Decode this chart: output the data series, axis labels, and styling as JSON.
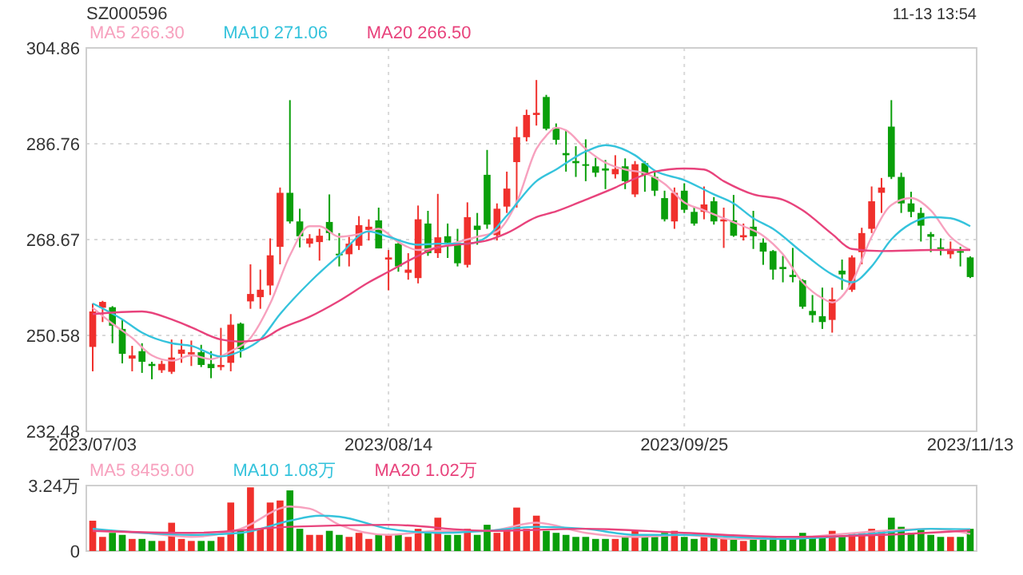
{
  "chart_data": [
    {
      "type": "candlestick",
      "title": "SZ000596",
      "annotations": [
        "11-13 13:54"
      ],
      "categories": [
        "2023/07/03",
        null,
        null,
        null,
        null,
        null,
        null,
        null,
        null,
        null,
        null,
        null,
        null,
        null,
        null,
        null,
        null,
        null,
        null,
        null,
        null,
        null,
        null,
        null,
        null,
        null,
        null,
        null,
        null,
        null,
        "2023/08/14",
        null,
        null,
        null,
        null,
        null,
        null,
        null,
        null,
        null,
        null,
        null,
        null,
        null,
        null,
        null,
        null,
        null,
        null,
        null,
        null,
        null,
        null,
        null,
        null,
        null,
        null,
        null,
        null,
        null,
        "2023/09/25",
        null,
        null,
        null,
        null,
        null,
        null,
        null,
        null,
        null,
        null,
        null,
        null,
        null,
        null,
        null,
        null,
        null,
        null,
        null,
        null,
        null,
        null,
        null,
        null,
        null,
        null,
        null,
        null,
        "2023/11/13"
      ],
      "ohlc": [
        [
          248.4,
          256.6,
          243.8,
          255.1
        ],
        [
          255.8,
          257.1,
          253.1,
          256.9
        ],
        [
          255.9,
          256.1,
          249.1,
          252.4
        ],
        [
          251.8,
          253.6,
          245.3,
          247.1
        ],
        [
          246.2,
          248.6,
          243.8,
          246.8
        ],
        [
          247.6,
          249.1,
          243.5,
          245.6
        ],
        [
          245.2,
          245.6,
          242.3,
          244.8
        ],
        [
          244.0,
          245.8,
          243.5,
          245.2
        ],
        [
          243.7,
          249.8,
          243.3,
          246.4
        ],
        [
          247.1,
          249.8,
          245.4,
          247.9
        ],
        [
          247.0,
          249.6,
          244.8,
          247.4
        ],
        [
          247.4,
          248.8,
          244.6,
          245.0
        ],
        [
          245.2,
          247.6,
          242.5,
          244.4
        ],
        [
          244.6,
          252.0,
          244.0,
          245.0
        ],
        [
          245.4,
          254.6,
          243.8,
          252.6
        ],
        [
          252.8,
          253.0,
          246.4,
          248.0
        ],
        [
          257.0,
          264.0,
          255.6,
          258.4
        ],
        [
          257.8,
          263.0,
          255.6,
          259.2
        ],
        [
          260.0,
          268.9,
          258.2,
          265.7
        ],
        [
          267.3,
          278.5,
          264.0,
          277.5
        ],
        [
          277.5,
          295.0,
          271.7,
          272.1
        ],
        [
          272.1,
          274.5,
          267.2,
          269.3
        ],
        [
          267.9,
          269.7,
          267.2,
          268.9
        ],
        [
          268.2,
          270.7,
          264.7,
          269.4
        ],
        [
          272.0,
          277.2,
          268.5,
          269.9
        ],
        [
          266.0,
          269.9,
          263.6,
          265.8
        ],
        [
          265.9,
          269.2,
          263.6,
          267.9
        ],
        [
          267.5,
          273.1,
          266.7,
          271.4
        ],
        [
          270.5,
          272.5,
          268.5,
          271.1
        ],
        [
          272.3,
          274.7,
          267.0,
          267.0
        ],
        [
          264.9,
          266.7,
          259.1,
          265.3
        ],
        [
          267.9,
          268.5,
          262.6,
          263.6
        ],
        [
          262.4,
          266.1,
          261.1,
          263.0
        ],
        [
          261.4,
          275.1,
          260.4,
          272.5
        ],
        [
          271.7,
          274.1,
          265.6,
          266.1
        ],
        [
          266.1,
          277.3,
          265.2,
          269.1
        ],
        [
          269.3,
          271.7,
          265.2,
          268.1
        ],
        [
          268.1,
          270.7,
          263.6,
          264.2
        ],
        [
          263.9,
          275.7,
          263.4,
          272.9
        ],
        [
          271.3,
          273.7,
          267.7,
          270.5
        ],
        [
          280.9,
          285.6,
          270.7,
          271.5
        ],
        [
          269.5,
          275.5,
          268.5,
          274.5
        ],
        [
          274.9,
          281.5,
          273.7,
          278.3
        ],
        [
          283.3,
          290.0,
          274.7,
          288.0
        ],
        [
          288.0,
          293.2,
          287.2,
          292.2
        ],
        [
          292.2,
          298.8,
          290.2,
          292.6
        ],
        [
          295.6,
          296.0,
          289.3,
          289.6
        ],
        [
          289.8,
          290.6,
          286.6,
          287.5
        ],
        [
          285.0,
          289.3,
          281.5,
          284.6
        ],
        [
          283.5,
          286.3,
          280.5,
          283.1
        ],
        [
          282.9,
          287.6,
          279.7,
          282.6
        ],
        [
          282.5,
          284.1,
          280.5,
          281.3
        ],
        [
          282.1,
          283.7,
          278.2,
          281.7
        ],
        [
          281.0,
          284.6,
          280.2,
          282.0
        ],
        [
          282.5,
          284.0,
          278.2,
          279.7
        ],
        [
          277.2,
          283.5,
          276.7,
          282.9
        ],
        [
          283.1,
          283.5,
          277.7,
          280.9
        ],
        [
          280.5,
          281.5,
          276.9,
          277.9
        ],
        [
          276.5,
          277.9,
          272.1,
          272.5
        ],
        [
          272.1,
          278.5,
          270.7,
          277.5
        ],
        [
          277.9,
          279.3,
          273.7,
          274.3
        ],
        [
          273.9,
          274.9,
          271.3,
          271.7
        ],
        [
          273.9,
          278.7,
          272.5,
          275.3
        ],
        [
          275.9,
          276.7,
          271.5,
          272.1
        ],
        [
          272.1,
          274.7,
          267.1,
          272.5
        ],
        [
          272.3,
          277.1,
          269.2,
          269.4
        ],
        [
          269.1,
          271.7,
          268.5,
          269.5
        ],
        [
          271.1,
          274.1,
          266.9,
          269.3
        ],
        [
          268.1,
          268.9,
          263.9,
          266.4
        ],
        [
          266.5,
          266.7,
          261.1,
          263.0
        ],
        [
          263.5,
          265.6,
          260.6,
          263.1
        ],
        [
          262.0,
          267.1,
          260.6,
          261.6
        ],
        [
          261.0,
          261.2,
          255.6,
          256.0
        ],
        [
          255.2,
          258.2,
          253.0,
          254.4
        ],
        [
          254.2,
          259.6,
          251.8,
          253.1
        ],
        [
          253.5,
          259.6,
          251.1,
          257.4
        ],
        [
          262.8,
          264.9,
          259.2,
          262.1
        ],
        [
          259.2,
          265.7,
          258.8,
          265.3
        ],
        [
          266.3,
          270.9,
          264.0,
          269.9
        ],
        [
          270.7,
          278.7,
          269.9,
          275.9
        ],
        [
          277.5,
          280.3,
          273.7,
          278.5
        ],
        [
          290.0,
          295.0,
          280.1,
          280.5
        ],
        [
          280.5,
          281.3,
          273.7,
          275.5
        ],
        [
          275.5,
          277.7,
          272.9,
          273.9
        ],
        [
          273.7,
          274.7,
          268.3,
          271.3
        ],
        [
          269.7,
          270.1,
          266.3,
          269.2
        ],
        [
          267.2,
          268.9,
          265.7,
          266.9
        ],
        [
          265.9,
          268.3,
          265.1,
          266.9
        ],
        [
          266.5,
          267.3,
          263.6,
          266.2
        ],
        [
          265.3,
          265.5,
          261.4,
          261.6
        ]
      ],
      "colors": [
        "#f0302c",
        "#f0302c",
        "#0a9f0a",
        "#0a9f0a",
        "#f0302c",
        "#0a9f0a",
        "#0a9f0a",
        "#f0302c",
        "#f0302c",
        "#f0302c",
        "#f0302c",
        "#0a9f0a",
        "#0a9f0a",
        "#f0302c",
        "#f0302c",
        "#0a9f0a",
        "#f0302c",
        "#f0302c",
        "#f0302c",
        "#f0302c",
        "#0a9f0a",
        "#0a9f0a",
        "#f0302c",
        "#f0302c",
        "#0a9f0a",
        "#0a9f0a",
        "#f0302c",
        "#f0302c",
        "#f0302c",
        "#0a9f0a",
        "#f0302c",
        "#0a9f0a",
        "#f0302c",
        "#f0302c",
        "#0a9f0a",
        "#f0302c",
        "#0a9f0a",
        "#0a9f0a",
        "#f0302c",
        "#0a9f0a",
        "#0a9f0a",
        "#f0302c",
        "#f0302c",
        "#f0302c",
        "#f0302c",
        "#f0302c",
        "#0a9f0a",
        "#0a9f0a",
        "#0a9f0a",
        "#0a9f0a",
        "#0a9f0a",
        "#0a9f0a",
        "#0a9f0a",
        "#f0302c",
        "#0a9f0a",
        "#f0302c",
        "#0a9f0a",
        "#0a9f0a",
        "#0a9f0a",
        "#f0302c",
        "#0a9f0a",
        "#0a9f0a",
        "#f0302c",
        "#0a9f0a",
        "#f0302c",
        "#0a9f0a",
        "#f0302c",
        "#0a9f0a",
        "#0a9f0a",
        "#0a9f0a",
        "#0a9f0a",
        "#0a9f0a",
        "#0a9f0a",
        "#0a9f0a",
        "#0a9f0a",
        "#f0302c",
        "#0a9f0a",
        "#f0302c",
        "#f0302c",
        "#f0302c",
        "#f0302c",
        "#0a9f0a",
        "#0a9f0a",
        "#0a9f0a",
        "#0a9f0a",
        "#0a9f0a",
        "#0a9f0a",
        "#f0302c",
        "#0a9f0a",
        "#0a9f0a"
      ],
      "series": [
        {
          "type": "line",
          "name": "MA5 266.30",
          "color": "#f7a1be",
          "values": [
            255.8,
            null,
            252.8,
            null,
            250.1,
            null,
            246.8,
            null,
            245.8,
            null,
            246.8,
            null,
            246.1,
            null,
            247.6,
            null,
            250.1,
            null,
            256.6,
            null,
            265.7,
            null,
            271.2,
            271.2,
            null,
            269.2,
            null,
            269.7,
            null,
            270.7,
            null,
            268.2,
            null,
            266.7,
            null,
            267.2,
            null,
            268.2,
            null,
            269.2,
            null,
            270.2,
            null,
            275.7,
            null,
            285.8,
            288.3,
            289.8,
            289.3,
            null,
            285.8,
            null,
            283.2,
            null,
            281.9,
            null,
            281.2,
            null,
            279.2,
            null,
            275.7,
            null,
            274.2,
            null,
            272.7,
            null,
            271.2,
            null,
            269.4,
            null,
            265.9,
            null,
            260.6,
            null,
            257.6,
            256.8,
            null,
            260.6,
            null,
            269.2,
            null,
            275.2,
            null,
            276.5,
            null,
            274.2,
            null,
            269.2,
            null,
            266.7
          ]
        },
        {
          "type": "line",
          "name": "MA10 271.06",
          "color": "#35c3dc",
          "values": [
            256.6,
            null,
            null,
            253.6,
            null,
            251.1,
            null,
            null,
            249.1,
            null,
            248.6,
            null,
            null,
            246.6,
            null,
            247.6,
            null,
            249.8,
            null,
            254.6,
            null,
            null,
            260.6,
            null,
            null,
            265.7,
            null,
            null,
            270.2,
            null,
            269.2,
            null,
            null,
            267.7,
            null,
            267.9,
            null,
            null,
            267.9,
            null,
            269.2,
            null,
            273.2,
            null,
            null,
            279.7,
            null,
            281.9,
            null,
            null,
            285.3,
            null,
            286.5,
            null,
            null,
            284.6,
            null,
            281.7,
            null,
            null,
            279.9,
            null,
            null,
            277.2,
            null,
            275.5,
            null,
            272.7,
            null,
            270.7,
            null,
            null,
            266.2,
            null,
            null,
            262.1,
            null,
            260.6,
            null,
            263.6,
            null,
            268.7,
            null,
            271.7,
            null,
            272.9,
            null,
            272.7,
            null,
            271.2
          ]
        },
        {
          "type": "line",
          "name": "MA20 266.50",
          "color": "#e8437c",
          "values": [
            254.6,
            null,
            null,
            null,
            null,
            255.1,
            null,
            null,
            253.6,
            null,
            252.1,
            null,
            null,
            249.8,
            null,
            249.4,
            null,
            249.8,
            null,
            251.8,
            null,
            null,
            254.1,
            null,
            null,
            257.1,
            null,
            null,
            260.6,
            null,
            262.6,
            null,
            null,
            265.6,
            null,
            267.2,
            null,
            null,
            267.9,
            null,
            268.5,
            null,
            269.9,
            null,
            null,
            272.9,
            null,
            274.0,
            null,
            null,
            276.2,
            null,
            null,
            278.5,
            null,
            280.2,
            null,
            281.5,
            null,
            null,
            282.1,
            null,
            281.9,
            null,
            279.7,
            null,
            null,
            277.2,
            null,
            null,
            276.2,
            null,
            274.2,
            null,
            null,
            269.7,
            null,
            266.9,
            null,
            null,
            266.5,
            null,
            null,
            null,
            null,
            266.7,
            null,
            null,
            null,
            266.7
          ]
        }
      ],
      "ylim": [
        232.48,
        304.86
      ],
      "yticks": [
        304.86,
        286.76,
        268.67,
        250.58,
        232.48
      ],
      "grid": true,
      "legend": "top left"
    },
    {
      "type": "bar",
      "tick_labels": "y",
      "categories": [
        "2023/07/03",
        null,
        null,
        null,
        null,
        null,
        null,
        null,
        null,
        null,
        null,
        null,
        null,
        null,
        null,
        null,
        null,
        null,
        null,
        null,
        null,
        null,
        null,
        null,
        null,
        null,
        null,
        null,
        null,
        null,
        "2023/08/14",
        null,
        null,
        null,
        null,
        null,
        null,
        null,
        null,
        null,
        null,
        null,
        null,
        null,
        null,
        null,
        null,
        null,
        null,
        null,
        null,
        null,
        null,
        null,
        null,
        null,
        null,
        null,
        null,
        null,
        "2023/09/25",
        null,
        null,
        null,
        null,
        null,
        null,
        null,
        null,
        null,
        null,
        null,
        null,
        null,
        null,
        null,
        null,
        null,
        null,
        null,
        null,
        null,
        null,
        null,
        null,
        null,
        null,
        null,
        null,
        "2023/11/13"
      ],
      "values": [
        1.5,
        0.7,
        0.9,
        0.8,
        0.6,
        0.6,
        0.5,
        0.5,
        1.4,
        0.6,
        0.5,
        0.5,
        0.5,
        0.7,
        2.4,
        1.0,
        3.15,
        1.1,
        2.4,
        2.5,
        3.0,
        1.1,
        0.8,
        0.8,
        1.0,
        0.8,
        0.7,
        0.9,
        0.6,
        0.8,
        0.8,
        0.8,
        0.7,
        1.1,
        0.9,
        1.65,
        0.8,
        0.8,
        1.1,
        0.8,
        1.3,
        0.9,
        1.1,
        2.15,
        1.1,
        1.75,
        1.0,
        0.9,
        0.8,
        0.7,
        0.7,
        0.6,
        0.6,
        0.6,
        0.7,
        1.0,
        0.7,
        0.7,
        0.9,
        1.0,
        0.7,
        0.6,
        0.7,
        0.7,
        0.6,
        0.6,
        0.5,
        0.6,
        0.6,
        0.7,
        0.6,
        0.6,
        0.9,
        0.7,
        0.7,
        1.0,
        0.7,
        0.9,
        0.9,
        1.1,
        1.0,
        1.65,
        1.2,
        0.9,
        1.1,
        0.8,
        0.7,
        0.7,
        0.7,
        1.1
      ],
      "colors": [
        "#f0302c",
        "#f0302c",
        "#0a9f0a",
        "#0a9f0a",
        "#f0302c",
        "#0a9f0a",
        "#0a9f0a",
        "#f0302c",
        "#f0302c",
        "#f0302c",
        "#f0302c",
        "#0a9f0a",
        "#0a9f0a",
        "#f0302c",
        "#f0302c",
        "#0a9f0a",
        "#f0302c",
        "#f0302c",
        "#f0302c",
        "#f0302c",
        "#0a9f0a",
        "#0a9f0a",
        "#f0302c",
        "#f0302c",
        "#0a9f0a",
        "#0a9f0a",
        "#f0302c",
        "#f0302c",
        "#f0302c",
        "#0a9f0a",
        "#f0302c",
        "#0a9f0a",
        "#f0302c",
        "#f0302c",
        "#0a9f0a",
        "#f0302c",
        "#0a9f0a",
        "#0a9f0a",
        "#f0302c",
        "#0a9f0a",
        "#0a9f0a",
        "#f0302c",
        "#f0302c",
        "#f0302c",
        "#f0302c",
        "#f0302c",
        "#0a9f0a",
        "#0a9f0a",
        "#0a9f0a",
        "#0a9f0a",
        "#0a9f0a",
        "#0a9f0a",
        "#0a9f0a",
        "#f0302c",
        "#0a9f0a",
        "#f0302c",
        "#0a9f0a",
        "#0a9f0a",
        "#0a9f0a",
        "#f0302c",
        "#0a9f0a",
        "#0a9f0a",
        "#f0302c",
        "#0a9f0a",
        "#f0302c",
        "#0a9f0a",
        "#f0302c",
        "#0a9f0a",
        "#0a9f0a",
        "#0a9f0a",
        "#0a9f0a",
        "#0a9f0a",
        "#0a9f0a",
        "#0a9f0a",
        "#0a9f0a",
        "#f0302c",
        "#0a9f0a",
        "#f0302c",
        "#f0302c",
        "#f0302c",
        "#f0302c",
        "#0a9f0a",
        "#0a9f0a",
        "#0a9f0a",
        "#0a9f0a",
        "#0a9f0a",
        "#0a9f0a",
        "#f0302c",
        "#0a9f0a",
        "#0a9f0a"
      ],
      "series": [
        {
          "type": "line",
          "name": "MA5 8459.00",
          "color": "#f7a1be",
          "values": [
            1.0,
            null,
            null,
            null,
            null,
            0.9,
            null,
            null,
            null,
            null,
            0.7,
            null,
            null,
            null,
            null,
            1.1,
            null,
            null,
            null,
            null,
            2.2,
            null,
            2.1,
            null,
            null,
            1.3,
            null,
            null,
            null,
            null,
            0.8,
            null,
            null,
            null,
            null,
            1.0,
            null,
            null,
            null,
            null,
            1.0,
            null,
            null,
            null,
            null,
            1.4,
            null,
            null,
            null,
            null,
            0.9,
            null,
            null,
            null,
            null,
            0.7,
            null,
            null,
            null,
            null,
            0.8,
            null,
            null,
            null,
            null,
            0.6,
            null,
            null,
            null,
            null,
            0.6,
            null,
            null,
            null,
            null,
            0.8,
            null,
            null,
            null,
            null,
            1.0,
            null,
            null,
            null,
            null,
            1.1,
            null,
            null,
            null,
            0.85
          ]
        },
        {
          "type": "line",
          "name": "MA10 1.08万",
          "color": "#35c3dc",
          "values": [
            1.1,
            null,
            null,
            null,
            null,
            null,
            null,
            null,
            null,
            null,
            0.8,
            null,
            null,
            null,
            null,
            0.9,
            null,
            null,
            null,
            null,
            1.5,
            null,
            null,
            1.75,
            null,
            1.7,
            null,
            null,
            null,
            null,
            1.1,
            null,
            null,
            null,
            null,
            0.9,
            null,
            null,
            null,
            null,
            1.0,
            null,
            null,
            null,
            null,
            1.2,
            null,
            null,
            null,
            null,
            1.1,
            null,
            null,
            null,
            null,
            0.8,
            null,
            null,
            null,
            null,
            0.8,
            null,
            null,
            null,
            null,
            0.7,
            null,
            null,
            null,
            null,
            0.6,
            null,
            null,
            null,
            null,
            0.7,
            null,
            null,
            null,
            null,
            0.9,
            null,
            null,
            null,
            null,
            1.1,
            null,
            null,
            null,
            1.08
          ]
        },
        {
          "type": "line",
          "name": "MA20 1.02万",
          "color": "#e8437c",
          "values": [
            1.0,
            null,
            null,
            null,
            null,
            null,
            null,
            null,
            null,
            null,
            0.9,
            null,
            null,
            null,
            null,
            null,
            null,
            null,
            null,
            null,
            1.2,
            null,
            null,
            null,
            null,
            null,
            null,
            null,
            null,
            null,
            1.3,
            null,
            null,
            null,
            null,
            null,
            null,
            null,
            null,
            null,
            1.0,
            null,
            null,
            null,
            null,
            null,
            null,
            null,
            null,
            null,
            1.1,
            null,
            null,
            null,
            null,
            null,
            null,
            null,
            null,
            null,
            0.9,
            null,
            null,
            null,
            null,
            null,
            null,
            null,
            null,
            null,
            0.7,
            null,
            null,
            null,
            null,
            null,
            null,
            null,
            null,
            null,
            0.8,
            null,
            null,
            null,
            null,
            null,
            null,
            null,
            null,
            1.02
          ]
        }
      ],
      "ylim": [
        0,
        3.24
      ],
      "yticks": [
        {
          "value": 3.24,
          "label": "3.24万"
        },
        0
      ],
      "grid": true,
      "legend": "top left"
    }
  ]
}
